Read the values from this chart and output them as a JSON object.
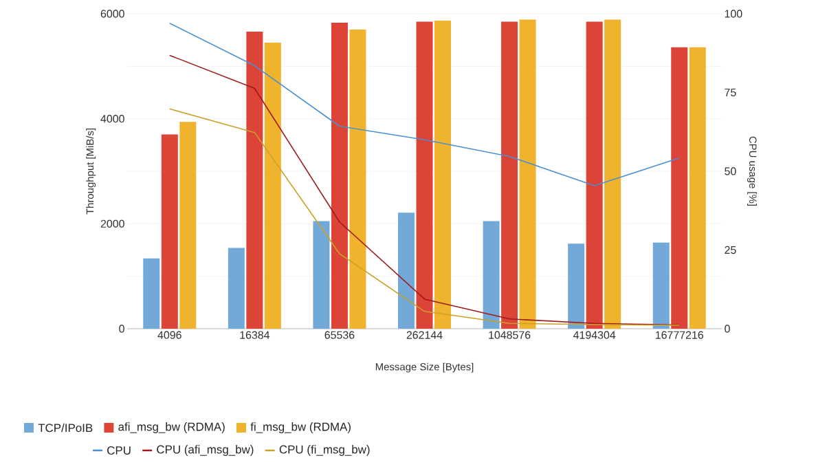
{
  "chart_data": {
    "type": "bar",
    "xlabel": "Message Size [Bytes]",
    "ylabel": "Throughput [MiB/s]",
    "y2label": "CPU usage [%]",
    "categories": [
      "4096",
      "16384",
      "65536",
      "262144",
      "1048576",
      "4194304",
      "16777216"
    ],
    "series": [
      {
        "name": "TCP/IPoIB",
        "color": "#73a9d9",
        "values": [
          1340,
          1540,
          2050,
          2210,
          2050,
          1620,
          1640
        ]
      },
      {
        "name": "afi_msg_bw (RDMA)",
        "color": "#db4437",
        "values": [
          3700,
          5660,
          5830,
          5850,
          5850,
          5850,
          5360
        ]
      },
      {
        "name": "fi_msg_bw (RDMA)",
        "color": "#f0b32d",
        "values": [
          3940,
          5450,
          5700,
          5870,
          5890,
          5890,
          5360
        ]
      },
      {
        "name": "CPU",
        "type": "line",
        "axis": "y2",
        "color": "#4a90d0",
        "values": [
          97,
          83.5,
          64.3,
          60,
          54.7,
          45.4,
          54.2
        ]
      },
      {
        "name": "CPU (afi_msg_bw)",
        "type": "line",
        "axis": "y2",
        "color": "#a01a1a",
        "values": [
          86.8,
          76.3,
          33.9,
          9.4,
          3.1,
          1.7,
          1.2
        ]
      },
      {
        "name": "CPU (fi_msg_bw)",
        "type": "line",
        "axis": "y2",
        "color": "#c9a227",
        "values": [
          69.8,
          62.3,
          23.8,
          5.5,
          1.7,
          1.3,
          1.1
        ]
      }
    ],
    "ylim": [
      0,
      6000
    ],
    "yticks": [
      0,
      {
        "value": 1000,
        "label": null
      },
      2000,
      {
        "value": 3000,
        "label": null
      },
      4000,
      {
        "value": 5000,
        "label": null
      },
      6000
    ],
    "y2lim": [
      0,
      100
    ],
    "y2ticks": [
      0,
      25,
      50,
      75,
      100
    ],
    "grid": "y",
    "legend": "bottom",
    "marker": "none",
    "line_style": "solid"
  }
}
